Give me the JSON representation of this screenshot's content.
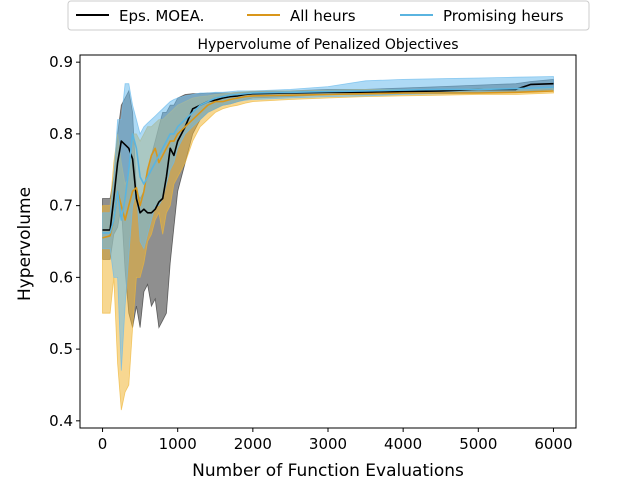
{
  "chart_data": {
    "type": "line",
    "title": "Hypervolume of Penalized Objectives",
    "xlabel": "Number of Function Evaluations",
    "ylabel": "Hypervolume",
    "xlim": [
      -300,
      6300
    ],
    "ylim": [
      0.39,
      0.91
    ],
    "xticks": [
      0,
      1000,
      2000,
      3000,
      4000,
      5000,
      6000
    ],
    "xtick_labels": [
      "0",
      "1000",
      "2000",
      "3000",
      "4000",
      "5000",
      "6000"
    ],
    "yticks": [
      0.4,
      0.5,
      0.6,
      0.7,
      0.8,
      0.9
    ],
    "ytick_labels": [
      "0.4",
      "0.5",
      "0.6",
      "0.7",
      "0.8",
      "0.9"
    ],
    "grid": false,
    "legend_position": "top-center",
    "series": [
      {
        "name": "Eps. MOEA.",
        "color": "#000000",
        "band_color": "#333333",
        "x": [
          0,
          100,
          150,
          200,
          250,
          300,
          350,
          400,
          450,
          500,
          550,
          600,
          650,
          700,
          750,
          800,
          850,
          900,
          950,
          1000,
          1100,
          1200,
          1300,
          1400,
          1500,
          1600,
          1700,
          1800,
          1900,
          2000,
          2500,
          3000,
          3500,
          4000,
          4500,
          5000,
          5500,
          5700,
          6000
        ],
        "y": [
          0.666,
          0.666,
          0.71,
          0.76,
          0.79,
          0.785,
          0.78,
          0.765,
          0.71,
          0.69,
          0.695,
          0.69,
          0.69,
          0.695,
          0.705,
          0.71,
          0.74,
          0.78,
          0.77,
          0.79,
          0.81,
          0.835,
          0.84,
          0.845,
          0.847,
          0.85,
          0.852,
          0.853,
          0.855,
          0.856,
          0.857,
          0.858,
          0.858,
          0.859,
          0.86,
          0.862,
          0.862,
          0.869,
          0.87
        ],
        "lower": [
          0.625,
          0.625,
          0.66,
          0.67,
          0.7,
          0.61,
          0.55,
          0.53,
          0.56,
          0.53,
          0.58,
          0.59,
          0.56,
          0.57,
          0.53,
          0.54,
          0.55,
          0.62,
          0.67,
          0.72,
          0.76,
          0.8,
          0.82,
          0.83,
          0.835,
          0.84,
          0.842,
          0.845,
          0.848,
          0.85,
          0.852,
          0.855,
          0.855,
          0.856,
          0.857,
          0.858,
          0.858,
          0.86,
          0.862
        ],
        "upper": [
          0.71,
          0.71,
          0.74,
          0.8,
          0.84,
          0.85,
          0.86,
          0.83,
          0.72,
          0.71,
          0.72,
          0.75,
          0.77,
          0.79,
          0.81,
          0.83,
          0.83,
          0.84,
          0.84,
          0.85,
          0.855,
          0.856,
          0.856,
          0.857,
          0.857,
          0.857,
          0.857,
          0.858,
          0.858,
          0.859,
          0.86,
          0.862,
          0.862,
          0.864,
          0.866,
          0.868,
          0.87,
          0.873,
          0.876
        ]
      },
      {
        "name": "All heurs",
        "color": "#d9961a",
        "band_color": "#f0b637",
        "x": [
          0,
          100,
          150,
          200,
          250,
          300,
          350,
          400,
          450,
          500,
          550,
          600,
          650,
          700,
          750,
          800,
          850,
          900,
          950,
          1000,
          1100,
          1200,
          1300,
          1400,
          1500,
          1600,
          1700,
          1800,
          1900,
          2000,
          2500,
          3000,
          3500,
          4000,
          4500,
          5000,
          5500,
          6000
        ],
        "y": [
          0.655,
          0.658,
          0.68,
          0.72,
          0.7,
          0.68,
          0.7,
          0.72,
          0.725,
          0.7,
          0.72,
          0.75,
          0.77,
          0.78,
          0.76,
          0.77,
          0.78,
          0.79,
          0.79,
          0.8,
          0.81,
          0.82,
          0.83,
          0.84,
          0.845,
          0.845,
          0.848,
          0.85,
          0.852,
          0.853,
          0.854,
          0.855,
          0.856,
          0.857,
          0.857,
          0.857,
          0.858,
          0.86
        ],
        "lower": [
          0.55,
          0.55,
          0.6,
          0.48,
          0.415,
          0.44,
          0.45,
          0.53,
          0.6,
          0.6,
          0.62,
          0.65,
          0.66,
          0.68,
          0.69,
          0.66,
          0.69,
          0.7,
          0.73,
          0.74,
          0.76,
          0.79,
          0.81,
          0.82,
          0.83,
          0.835,
          0.838,
          0.84,
          0.843,
          0.845,
          0.848,
          0.85,
          0.852,
          0.853,
          0.854,
          0.855,
          0.855,
          0.857
        ],
        "upper": [
          0.7,
          0.7,
          0.76,
          0.8,
          0.76,
          0.73,
          0.74,
          0.8,
          0.8,
          0.79,
          0.8,
          0.81,
          0.81,
          0.815,
          0.82,
          0.82,
          0.825,
          0.83,
          0.835,
          0.84,
          0.845,
          0.85,
          0.852,
          0.853,
          0.855,
          0.856,
          0.857,
          0.858,
          0.859,
          0.86,
          0.86,
          0.861,
          0.862,
          0.862,
          0.862,
          0.863,
          0.863,
          0.864
        ]
      },
      {
        "name": "Promising heurs",
        "color": "#5ab4e0",
        "band_color": "#6bbbec",
        "x": [
          0,
          100,
          150,
          200,
          250,
          300,
          350,
          400,
          450,
          500,
          550,
          600,
          650,
          700,
          750,
          800,
          850,
          900,
          950,
          1000,
          1100,
          1200,
          1300,
          1400,
          1500,
          1600,
          1700,
          1800,
          1900,
          2000,
          2500,
          3000,
          3500,
          4000,
          4500,
          5000,
          5500,
          6000
        ],
        "y": [
          0.662,
          0.662,
          0.68,
          0.72,
          0.68,
          0.71,
          0.75,
          0.8,
          0.78,
          0.74,
          0.73,
          0.74,
          0.75,
          0.76,
          0.77,
          0.78,
          0.79,
          0.8,
          0.8,
          0.81,
          0.82,
          0.83,
          0.84,
          0.845,
          0.85,
          0.852,
          0.854,
          0.855,
          0.856,
          0.857,
          0.858,
          0.859,
          0.86,
          0.861,
          0.862,
          0.862,
          0.863,
          0.865
        ],
        "lower": [
          0.64,
          0.64,
          0.6,
          0.6,
          0.47,
          0.56,
          0.63,
          0.7,
          0.72,
          0.65,
          0.64,
          0.66,
          0.68,
          0.7,
          0.7,
          0.71,
          0.73,
          0.75,
          0.76,
          0.78,
          0.8,
          0.81,
          0.82,
          0.83,
          0.835,
          0.84,
          0.842,
          0.845,
          0.847,
          0.848,
          0.85,
          0.852,
          0.853,
          0.855,
          0.856,
          0.857,
          0.858,
          0.86
        ],
        "upper": [
          0.69,
          0.69,
          0.74,
          0.82,
          0.82,
          0.87,
          0.87,
          0.84,
          0.82,
          0.8,
          0.81,
          0.815,
          0.82,
          0.825,
          0.83,
          0.835,
          0.84,
          0.845,
          0.848,
          0.85,
          0.853,
          0.855,
          0.857,
          0.857,
          0.858,
          0.858,
          0.859,
          0.86,
          0.86,
          0.86,
          0.862,
          0.866,
          0.874,
          0.876,
          0.877,
          0.878,
          0.879,
          0.88
        ]
      }
    ]
  }
}
